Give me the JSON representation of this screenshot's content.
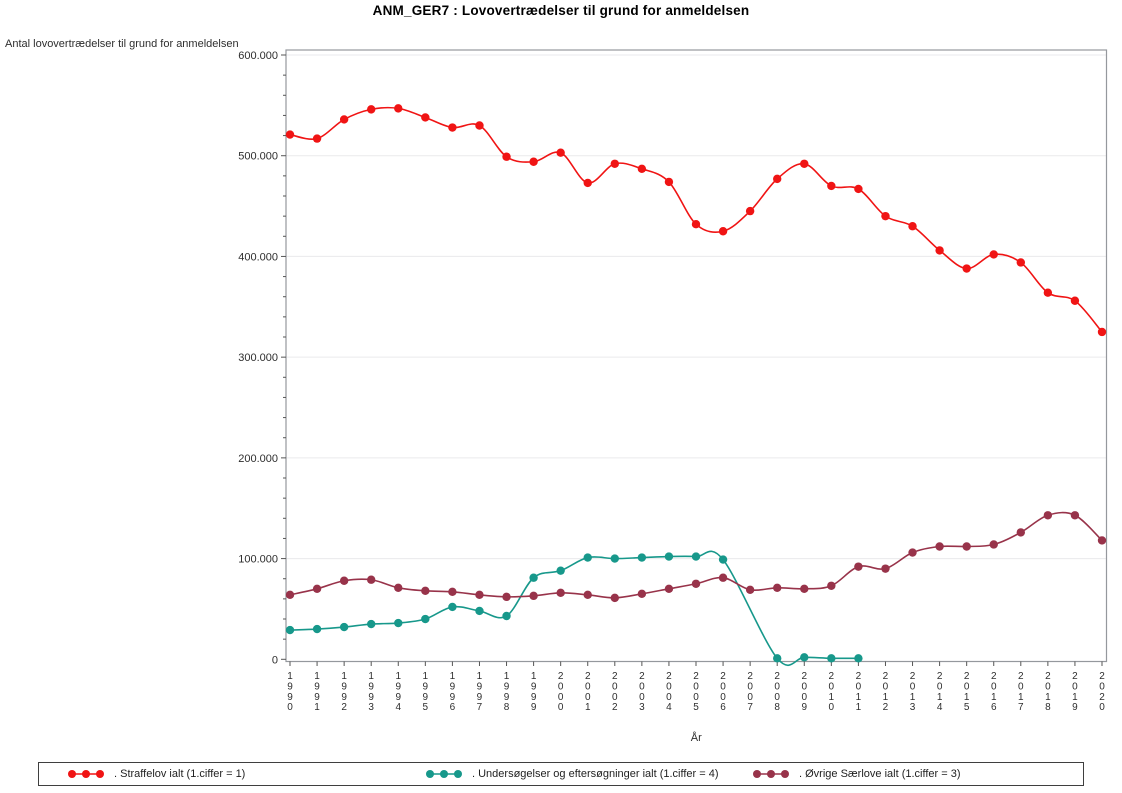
{
  "title": "ANM_GER7 : Lovovertrædelser til grund for anmeldelsen",
  "axes": {
    "y_label": "Antal lovovertrædelser til grund for anmeldelsen",
    "x_label": "År",
    "y_tick_labels": [
      "0",
      "100.000",
      "200.000",
      "300.000",
      "400.000",
      "500.000",
      "600.000"
    ]
  },
  "colors": {
    "series_red": "#f01414",
    "series_teal": "#17988b",
    "series_maroon": "#98334a",
    "frame": "#95989d",
    "grid": "#eaeaec",
    "tick": "#555555",
    "text": "#2e2e2e"
  },
  "legend": {
    "items": [
      {
        "key": "straffelov"
      },
      {
        "key": "undersogelser"
      },
      {
        "key": "ovrige"
      }
    ]
  },
  "chart_data": {
    "type": "line",
    "title": "ANM_GER7 : Lovovertrædelser til grund for anmeldelsen",
    "xlabel": "År",
    "ylabel": "Antal lovovertrædelser til grund for anmeldelsen",
    "ylim": [
      0,
      600000
    ],
    "y_major_step": 100000,
    "y_minor_step": 20000,
    "grid": "horizontal-major",
    "legend_position": "bottom",
    "x": [
      1990,
      1991,
      1992,
      1993,
      1994,
      1995,
      1996,
      1997,
      1998,
      1999,
      2000,
      2001,
      2002,
      2003,
      2004,
      2005,
      2006,
      2007,
      2008,
      2009,
      2010,
      2011,
      2012,
      2013,
      2014,
      2015,
      2016,
      2017,
      2018,
      2019,
      2020
    ],
    "series": [
      {
        "name": ". Straffelov ialt (1.ciffer = 1)",
        "color": "#f01414",
        "values": [
          521000,
          517000,
          536000,
          546000,
          547000,
          538000,
          528000,
          530000,
          499000,
          494000,
          503000,
          473000,
          492000,
          487000,
          474000,
          432000,
          425000,
          445000,
          477000,
          492000,
          470000,
          467000,
          440000,
          430000,
          406000,
          388000,
          402000,
          394000,
          364000,
          356000,
          325000
        ]
      },
      {
        "name": ". Undersøgelser og eftersøgninger ialt (1.ciffer = 4)",
        "color": "#17988b",
        "values": [
          29000,
          30000,
          32000,
          35000,
          36000,
          40000,
          52000,
          48000,
          43000,
          81000,
          88000,
          101000,
          100000,
          101000,
          102000,
          102000,
          99000,
          null,
          1000,
          2000,
          1000,
          1000,
          null,
          null,
          null,
          null,
          null,
          null,
          null,
          null,
          null
        ]
      },
      {
        "name": ". Øvrige Særlove ialt (1.ciffer = 3)",
        "color": "#98334a",
        "values": [
          64000,
          70000,
          78000,
          79000,
          71000,
          68000,
          67000,
          64000,
          62000,
          63000,
          66000,
          64000,
          61000,
          65000,
          70000,
          75000,
          81000,
          69000,
          71000,
          70000,
          73000,
          92000,
          90000,
          106000,
          112000,
          112000,
          114000,
          126000,
          143000,
          143000,
          118000
        ]
      }
    ]
  }
}
